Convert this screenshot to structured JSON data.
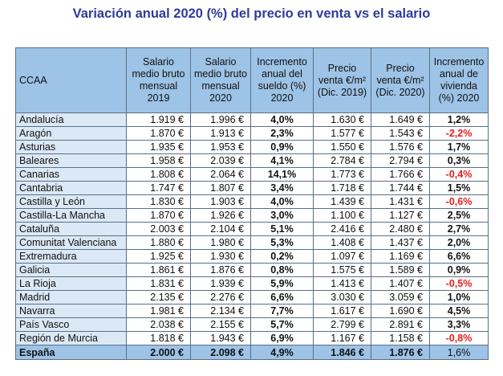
{
  "title": "Variación anual 2020 (%) del precio en venta vs el salario",
  "columns": [
    "CCAA",
    "Salario medio bruto mensual 2019",
    "Salario medio bruto mensual 2020",
    "Incremento anual del sueldo (%) 2020",
    "Precio venta €/m² (Dic. 2019)",
    "Precio venta €/m² (Dic. 2020)",
    "Incremento anual de vivienda (%) 2020"
  ],
  "rows": [
    {
      "ccaa": "Andalucía",
      "sal2019": "1.919 €",
      "sal2020": "1.996 €",
      "inc_sueldo": "4,0%",
      "precio2019": "1.630 €",
      "precio2020": "1.649 €",
      "inc_vivienda": "1,2%",
      "neg": false
    },
    {
      "ccaa": "Aragón",
      "sal2019": "1.870 €",
      "sal2020": "1.913 €",
      "inc_sueldo": "2,3%",
      "precio2019": "1.577 €",
      "precio2020": "1.543 €",
      "inc_vivienda": "-2,2%",
      "neg": true
    },
    {
      "ccaa": "Asturias",
      "sal2019": "1.935 €",
      "sal2020": "1.953 €",
      "inc_sueldo": "0,9%",
      "precio2019": "1.550 €",
      "precio2020": "1.576 €",
      "inc_vivienda": "1,7%",
      "neg": false
    },
    {
      "ccaa": "Baleares",
      "sal2019": "1.958 €",
      "sal2020": "2.039 €",
      "inc_sueldo": "4,1%",
      "precio2019": "2.784 €",
      "precio2020": "2.794 €",
      "inc_vivienda": "0,3%",
      "neg": false
    },
    {
      "ccaa": "Canarias",
      "sal2019": "1.808 €",
      "sal2020": "2.064 €",
      "inc_sueldo": "14,1%",
      "precio2019": "1.773 €",
      "precio2020": "1.766 €",
      "inc_vivienda": "-0,4%",
      "neg": true
    },
    {
      "ccaa": "Cantabria",
      "sal2019": "1.747 €",
      "sal2020": "1.807 €",
      "inc_sueldo": "3,4%",
      "precio2019": "1.718 €",
      "precio2020": "1.744 €",
      "inc_vivienda": "1,5%",
      "neg": false
    },
    {
      "ccaa": "Castilla y León",
      "sal2019": "1.830 €",
      "sal2020": "1.903 €",
      "inc_sueldo": "4,0%",
      "precio2019": "1.439 €",
      "precio2020": "1.431 €",
      "inc_vivienda": "-0,6%",
      "neg": true
    },
    {
      "ccaa": "Castilla-La Mancha",
      "sal2019": "1.870 €",
      "sal2020": "1.926 €",
      "inc_sueldo": "3,0%",
      "precio2019": "1.100 €",
      "precio2020": "1.127 €",
      "inc_vivienda": "2,5%",
      "neg": false
    },
    {
      "ccaa": "Cataluña",
      "sal2019": "2.003 €",
      "sal2020": "2.104 €",
      "inc_sueldo": "5,1%",
      "precio2019": "2.416 €",
      "precio2020": "2.480 €",
      "inc_vivienda": "2,7%",
      "neg": false
    },
    {
      "ccaa": "Comunitat Valenciana",
      "sal2019": "1.880 €",
      "sal2020": "1.980 €",
      "inc_sueldo": "5,3%",
      "precio2019": "1.408 €",
      "precio2020": "1.437 €",
      "inc_vivienda": "2,0%",
      "neg": false
    },
    {
      "ccaa": "Extremadura",
      "sal2019": "1.925 €",
      "sal2020": "1.930 €",
      "inc_sueldo": "0,2%",
      "precio2019": "1.097 €",
      "precio2020": "1.169 €",
      "inc_vivienda": "6,6%",
      "neg": false
    },
    {
      "ccaa": "Galicia",
      "sal2019": "1.861 €",
      "sal2020": "1.876 €",
      "inc_sueldo": "0,8%",
      "precio2019": "1.575 €",
      "precio2020": "1.589 €",
      "inc_vivienda": "0,9%",
      "neg": false
    },
    {
      "ccaa": "La Rioja",
      "sal2019": "1.831 €",
      "sal2020": "1.939 €",
      "inc_sueldo": "5,9%",
      "precio2019": "1.413 €",
      "precio2020": "1.407 €",
      "inc_vivienda": "-0,5%",
      "neg": true
    },
    {
      "ccaa": "Madrid",
      "sal2019": "2.135 €",
      "sal2020": "2.276 €",
      "inc_sueldo": "6,6%",
      "precio2019": "3.030 €",
      "precio2020": "3.059 €",
      "inc_vivienda": "1,0%",
      "neg": false
    },
    {
      "ccaa": "Navarra",
      "sal2019": "1.981 €",
      "sal2020": "2.134 €",
      "inc_sueldo": "7,7%",
      "precio2019": "1.617 €",
      "precio2020": "1.690 €",
      "inc_vivienda": "4,5%",
      "neg": false
    },
    {
      "ccaa": "País Vasco",
      "sal2019": "2.038 €",
      "sal2020": "2.155 €",
      "inc_sueldo": "5,7%",
      "precio2019": "2.799 €",
      "precio2020": "2.891 €",
      "inc_vivienda": "3,3%",
      "neg": false
    },
    {
      "ccaa": "Región de Murcia",
      "sal2019": "1.818 €",
      "sal2020": "1.943 €",
      "inc_sueldo": "6,9%",
      "precio2019": "1.167 €",
      "precio2020": "1.158 €",
      "inc_vivienda": "-0,8%",
      "neg": true
    }
  ],
  "total": {
    "ccaa": "España",
    "sal2019": "2.000 €",
    "sal2020": "2.098 €",
    "inc_sueldo": "4,9%",
    "precio2019": "1.846 €",
    "precio2020": "1.876 €",
    "inc_vivienda": "1,6%"
  },
  "colors": {
    "title": "#2e3b9c",
    "header_bg": "#9dc3e6",
    "name_bg": "#dbe8f5",
    "negative": "#e81d1d",
    "border": "#5a6f86"
  }
}
